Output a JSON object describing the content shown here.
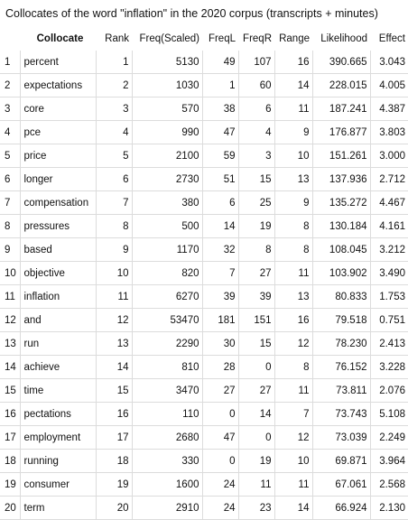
{
  "title": "Collocates of the word \"inflation\" in the 2020 corpus (transcripts + minutes)",
  "columns": {
    "collocate": "Collocate",
    "rank": "Rank",
    "freq_scaled": "Freq(Scaled)",
    "freql": "FreqL",
    "freqr": "FreqR",
    "range": "Range",
    "likelihood": "Likelihood",
    "effect": "Effect"
  },
  "rows": [
    {
      "idx": "1",
      "collocate": "percent",
      "rank": "1",
      "freq_scaled": "5130",
      "freql": "49",
      "freqr": "107",
      "range": "16",
      "likelihood": "390.665",
      "effect": "3.043"
    },
    {
      "idx": "2",
      "collocate": "expectations",
      "rank": "2",
      "freq_scaled": "1030",
      "freql": "1",
      "freqr": "60",
      "range": "14",
      "likelihood": "228.015",
      "effect": "4.005"
    },
    {
      "idx": "3",
      "collocate": "core",
      "rank": "3",
      "freq_scaled": "570",
      "freql": "38",
      "freqr": "6",
      "range": "11",
      "likelihood": "187.241",
      "effect": "4.387"
    },
    {
      "idx": "4",
      "collocate": "pce",
      "rank": "4",
      "freq_scaled": "990",
      "freql": "47",
      "freqr": "4",
      "range": "9",
      "likelihood": "176.877",
      "effect": "3.803"
    },
    {
      "idx": "5",
      "collocate": "price",
      "rank": "5",
      "freq_scaled": "2100",
      "freql": "59",
      "freqr": "3",
      "range": "10",
      "likelihood": "151.261",
      "effect": "3.000"
    },
    {
      "idx": "6",
      "collocate": "longer",
      "rank": "6",
      "freq_scaled": "2730",
      "freql": "51",
      "freqr": "15",
      "range": "13",
      "likelihood": "137.936",
      "effect": "2.712"
    },
    {
      "idx": "7",
      "collocate": "compensation",
      "rank": "7",
      "freq_scaled": "380",
      "freql": "6",
      "freqr": "25",
      "range": "9",
      "likelihood": "135.272",
      "effect": "4.467"
    },
    {
      "idx": "8",
      "collocate": "pressures",
      "rank": "8",
      "freq_scaled": "500",
      "freql": "14",
      "freqr": "19",
      "range": "8",
      "likelihood": "130.184",
      "effect": "4.161"
    },
    {
      "idx": "9",
      "collocate": "based",
      "rank": "9",
      "freq_scaled": "1170",
      "freql": "32",
      "freqr": "8",
      "range": "8",
      "likelihood": "108.045",
      "effect": "3.212"
    },
    {
      "idx": "10",
      "collocate": "objective",
      "rank": "10",
      "freq_scaled": "820",
      "freql": "7",
      "freqr": "27",
      "range": "11",
      "likelihood": "103.902",
      "effect": "3.490"
    },
    {
      "idx": "11",
      "collocate": "inflation",
      "rank": "11",
      "freq_scaled": "6270",
      "freql": "39",
      "freqr": "39",
      "range": "13",
      "likelihood": "80.833",
      "effect": "1.753"
    },
    {
      "idx": "12",
      "collocate": "and",
      "rank": "12",
      "freq_scaled": "53470",
      "freql": "181",
      "freqr": "151",
      "range": "16",
      "likelihood": "79.518",
      "effect": "0.751"
    },
    {
      "idx": "13",
      "collocate": "run",
      "rank": "13",
      "freq_scaled": "2290",
      "freql": "30",
      "freqr": "15",
      "range": "12",
      "likelihood": "78.230",
      "effect": "2.413"
    },
    {
      "idx": "14",
      "collocate": "achieve",
      "rank": "14",
      "freq_scaled": "810",
      "freql": "28",
      "freqr": "0",
      "range": "8",
      "likelihood": "76.152",
      "effect": "3.228"
    },
    {
      "idx": "15",
      "collocate": "time",
      "rank": "15",
      "freq_scaled": "3470",
      "freql": "27",
      "freqr": "27",
      "range": "11",
      "likelihood": "73.811",
      "effect": "2.076"
    },
    {
      "idx": "16",
      "collocate": "pectations",
      "rank": "16",
      "freq_scaled": "110",
      "freql": "0",
      "freqr": "14",
      "range": "7",
      "likelihood": "73.743",
      "effect": "5.108"
    },
    {
      "idx": "17",
      "collocate": "employment",
      "rank": "17",
      "freq_scaled": "2680",
      "freql": "47",
      "freqr": "0",
      "range": "12",
      "likelihood": "73.039",
      "effect": "2.249"
    },
    {
      "idx": "18",
      "collocate": "running",
      "rank": "18",
      "freq_scaled": "330",
      "freql": "0",
      "freqr": "19",
      "range": "10",
      "likelihood": "69.871",
      "effect": "3.964"
    },
    {
      "idx": "19",
      "collocate": "consumer",
      "rank": "19",
      "freq_scaled": "1600",
      "freql": "24",
      "freqr": "11",
      "range": "11",
      "likelihood": "67.061",
      "effect": "2.568"
    },
    {
      "idx": "20",
      "collocate": "term",
      "rank": "20",
      "freq_scaled": "2910",
      "freql": "24",
      "freqr": "23",
      "range": "14",
      "likelihood": "66.924",
      "effect": "2.130"
    }
  ]
}
